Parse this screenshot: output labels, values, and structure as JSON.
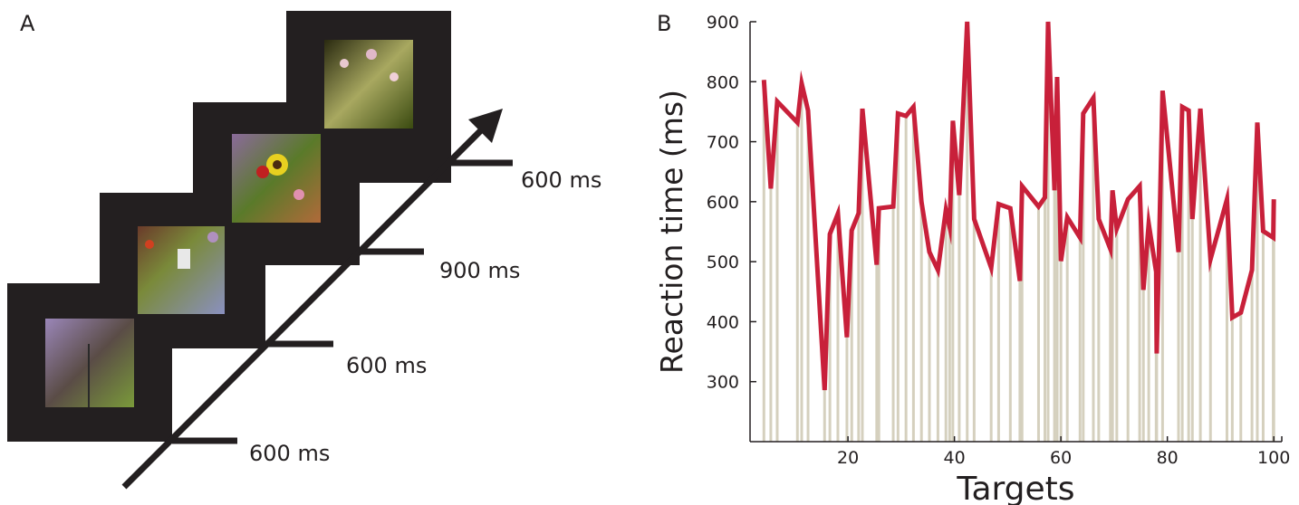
{
  "panel_a": {
    "label": "A",
    "durations": [
      "600 ms",
      "600 ms",
      "900 ms",
      "600 ms"
    ]
  },
  "panel_b_label": "B",
  "chart_data": {
    "type": "line",
    "xlabel": "Targets",
    "ylabel": "Reaction time (ms)",
    "x": [
      4.2,
      5.5,
      6.7,
      10.5,
      11.3,
      12.5,
      15.6,
      16.6,
      18.1,
      19.8,
      20.7,
      22,
      22.7,
      25.4,
      25.8,
      28.5,
      29.4,
      30.9,
      32.3,
      33.8,
      35.3,
      36.9,
      38.4,
      39.1,
      39.7,
      40.9,
      42.4,
      43.7,
      46.9,
      48.3,
      50.5,
      52.3,
      52.7,
      55.8,
      57,
      57.6,
      58.8,
      59.3,
      60,
      61.2,
      63.6,
      64.2,
      66.1,
      67.1,
      69.3,
      69.7,
      70.5,
      72.6,
      74.8,
      75.5,
      76.5,
      77.9,
      78,
      79.1,
      82.1,
      82.8,
      84,
      84.7,
      86.2,
      88.1,
      91.2,
      92.2,
      93.8,
      95.9,
      96.9,
      98,
      99.9,
      100
    ],
    "values": [
      803,
      622,
      767,
      732,
      797,
      752,
      286,
      546,
      580,
      374,
      552,
      581,
      755,
      495,
      589,
      592,
      747,
      743,
      758,
      600,
      516,
      486,
      586,
      558,
      735,
      611,
      900,
      571,
      490,
      596,
      589,
      468,
      626,
      592,
      607,
      900,
      619,
      808,
      501,
      574,
      540,
      747,
      773,
      571,
      521,
      619,
      555,
      604,
      626,
      453,
      563,
      483,
      347,
      785,
      516,
      758,
      752,
      571,
      755,
      504,
      604,
      407,
      415,
      486,
      732,
      551,
      540,
      604
    ],
    "color": "#c8203a",
    "stems": true,
    "stem_color": "#d5d0be",
    "xlim": [
      1.6,
      101.5
    ],
    "ylim": [
      200,
      900
    ],
    "xticks": [
      20,
      40,
      60,
      80,
      100
    ],
    "yticks": [
      300,
      400,
      500,
      600,
      700,
      800,
      900
    ]
  }
}
